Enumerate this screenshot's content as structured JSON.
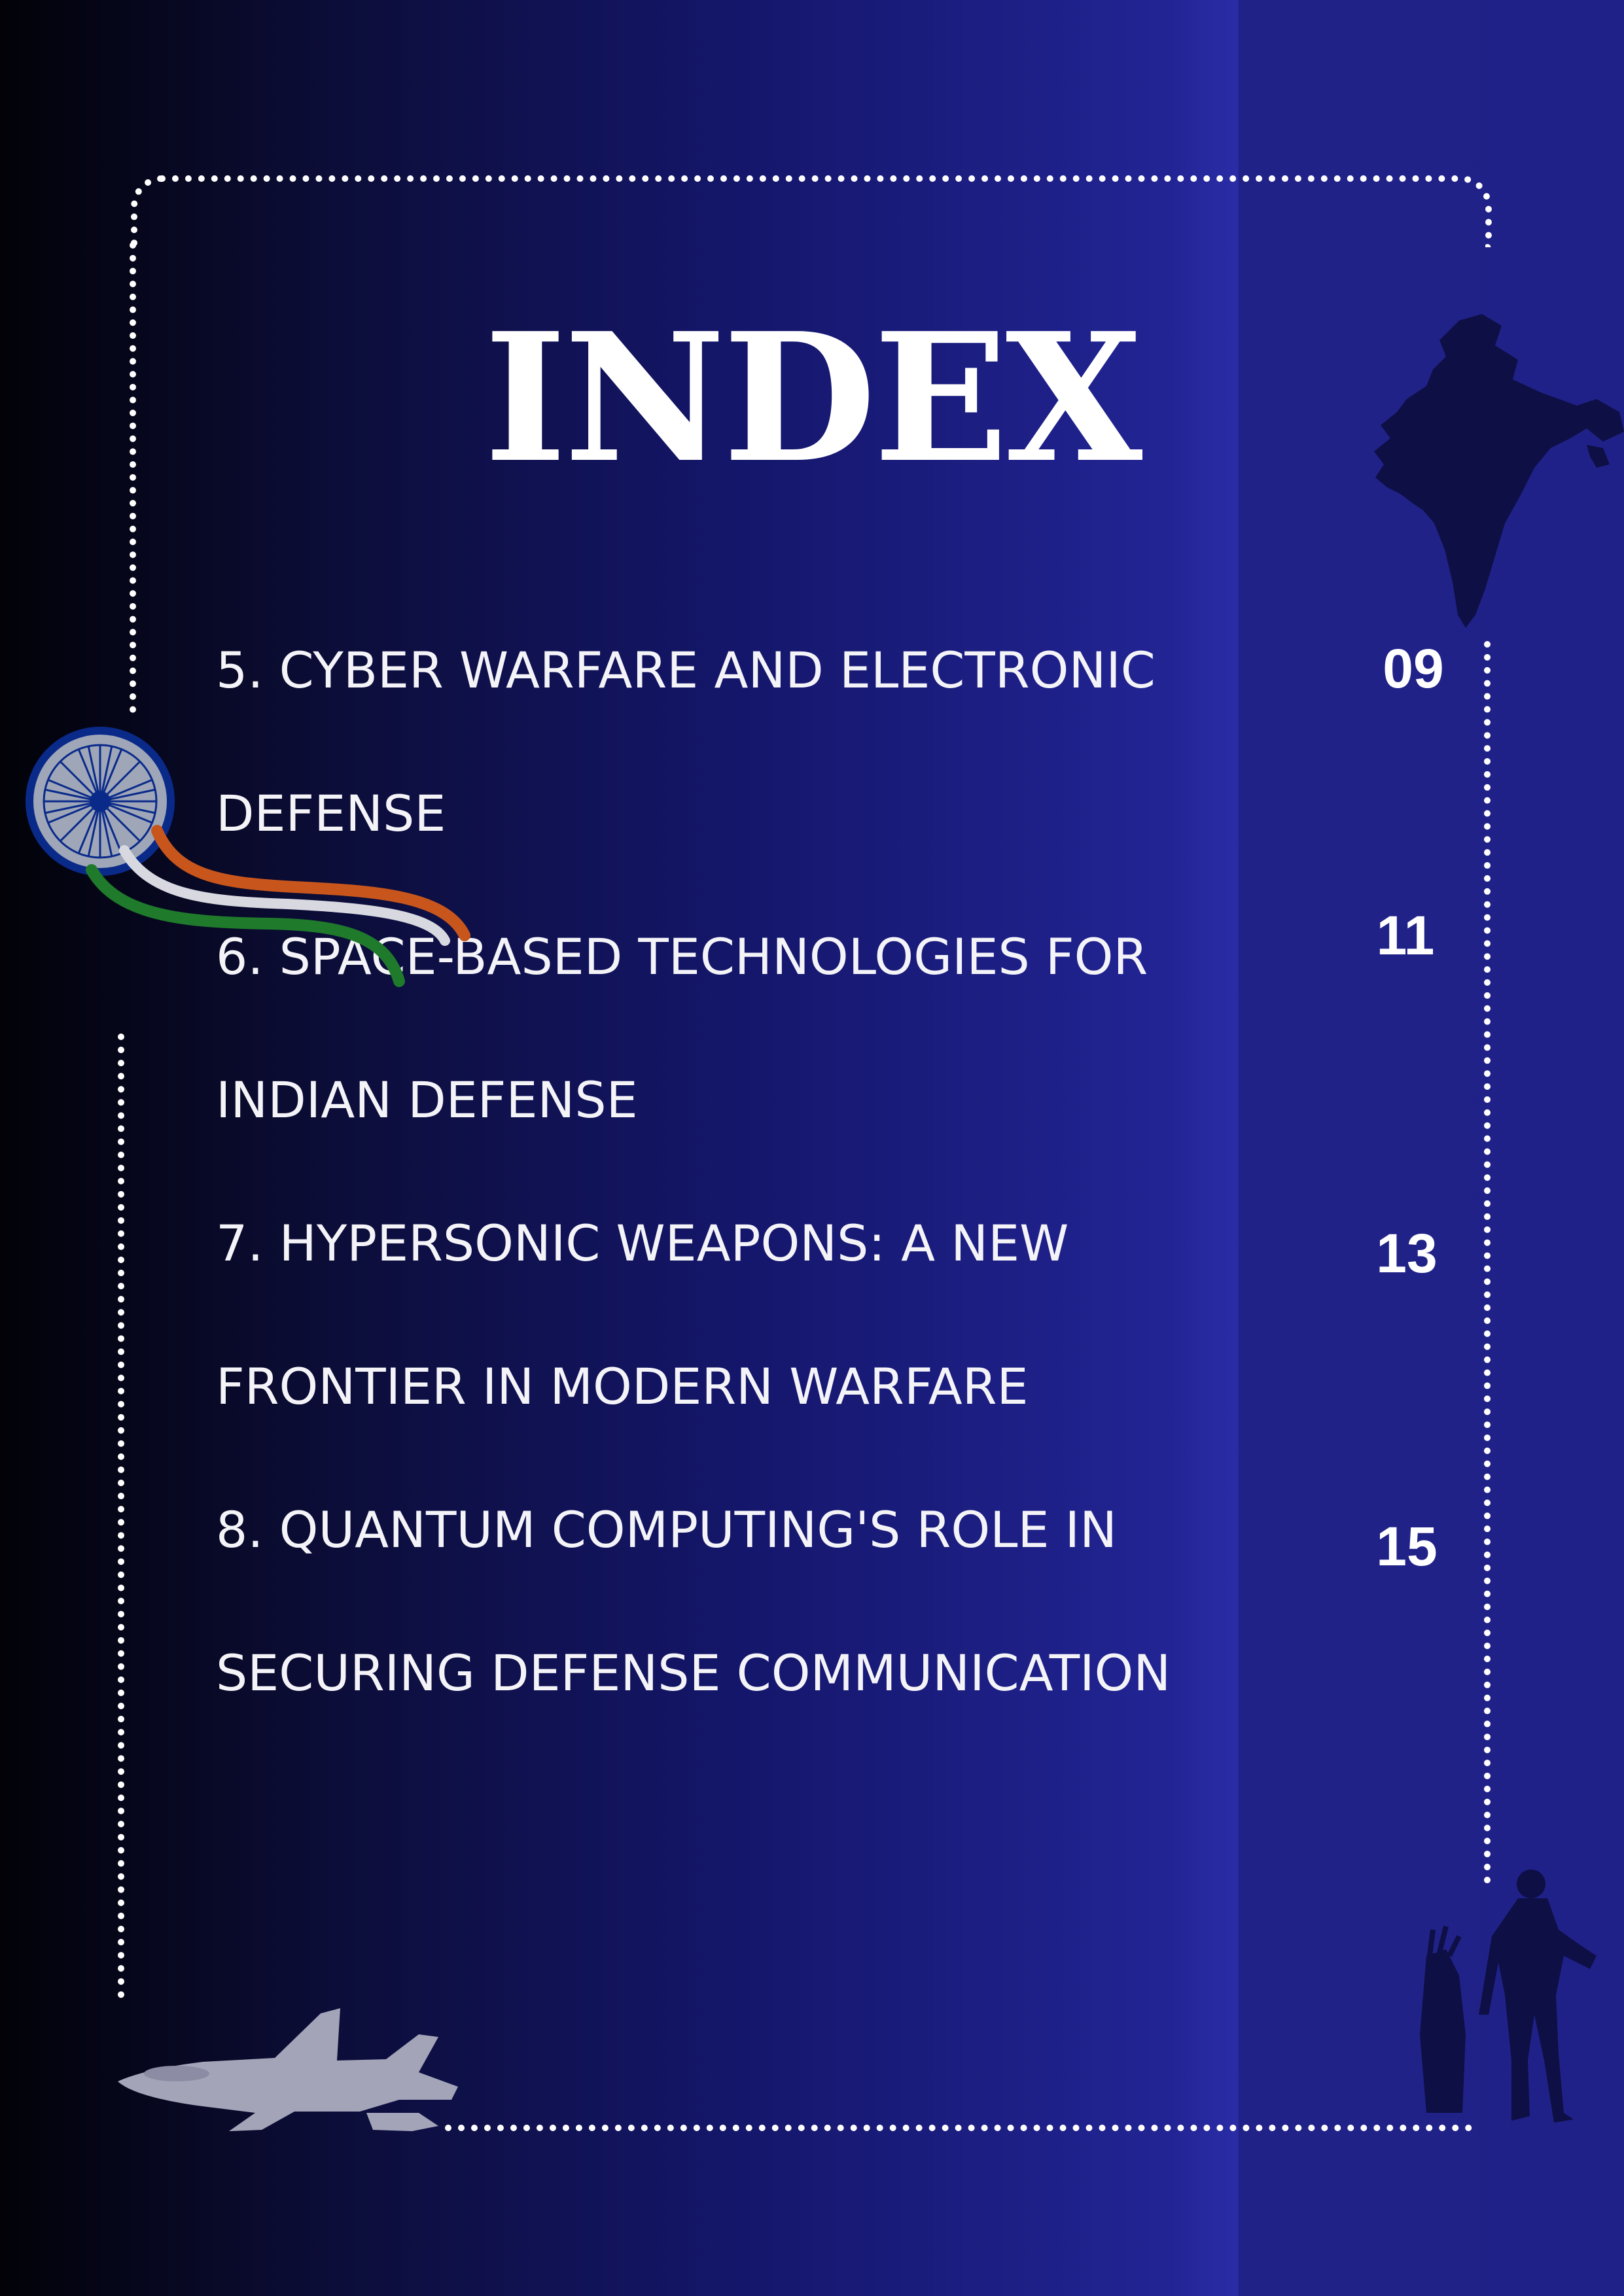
{
  "page": {
    "title": "INDEX",
    "entries": [
      {
        "line1": "5. CYBER WARFARE AND ELECTRONIC",
        "line2": "DEFENSE",
        "page": "09"
      },
      {
        "line1": "6. SPACE-BASED TECHNOLOGIES FOR",
        "line2": "INDIAN DEFENSE",
        "page": "11"
      },
      {
        "line1": "7. HYPERSONIC WEAPONS: A NEW",
        "line2": "FRONTIER IN MODERN WARFARE",
        "page": "13"
      },
      {
        "line1": "8. QUANTUM COMPUTING'S ROLE IN",
        "line2": "SECURING DEFENSE COMMUNICATION",
        "page": "15"
      }
    ]
  },
  "icons": [
    "india-map-icon",
    "ashoka-chakra-icon",
    "tricolor-ribbon-icon",
    "fighter-jet-icon",
    "soldier-silhouette-icon"
  ],
  "colors": {
    "background_dark": "#020208",
    "background_blue": "#2a2ca6",
    "frame": "#ffffff",
    "saffron": "#c8561c",
    "green": "#1f7a2b",
    "chakra_blue": "#0a2a8a",
    "silhouette": "#0e0f45",
    "jet": "#a3a4b8"
  }
}
